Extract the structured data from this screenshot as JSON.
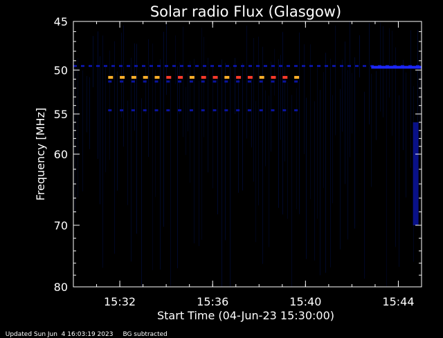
{
  "chart_data": {
    "type": "heatmap",
    "title": "Solar radio Flux (Glasgow)",
    "xlabel": "Start Time (04-Jun-23 15:30:00)",
    "ylabel": "Frequency [MHz]",
    "x_unit": "time (UT)",
    "xlim": [
      "15:30:00",
      "15:45:00"
    ],
    "ylim": [
      45,
      80
    ],
    "y_scale": "log",
    "x_ticks": [
      "15:32",
      "15:36",
      "15:40",
      "15:44"
    ],
    "y_ticks": [
      45,
      50,
      55,
      60,
      70,
      80
    ],
    "grid": false,
    "background_color": "#000000",
    "colors": {
      "faint": "#000a30",
      "weak": "#0a14a0",
      "medium": "#1e28ff",
      "strong": "#ff3a2a",
      "peak": "#ffb02a"
    },
    "features": [
      {
        "kind": "dashed-band",
        "freq_mhz": 50.8,
        "t_start": "15:31:30",
        "t_end": "15:39:45",
        "level": "strong"
      },
      {
        "kind": "dashed-band",
        "freq_mhz": 51.3,
        "t_start": "15:31:30",
        "t_end": "15:39:45",
        "level": "weak"
      },
      {
        "kind": "dashed-band",
        "freq_mhz": 54.6,
        "t_start": "15:31:30",
        "t_end": "15:39:45",
        "level": "weak"
      },
      {
        "kind": "dashed-band",
        "freq_mhz": 49.6,
        "t_start": "15:30:00",
        "t_end": "15:45:00",
        "level": "weak"
      },
      {
        "kind": "solid-band",
        "freq_mhz": 49.7,
        "t_start": "15:42:50",
        "t_end": "15:45:00",
        "level": "medium"
      },
      {
        "kind": "column",
        "time": "15:44:45",
        "f_start": 56,
        "f_end": 70,
        "level": "weak"
      }
    ]
  },
  "footer": {
    "updated": "Updated Sun Jun  4 16:03:19 2023",
    "note": "BG subtracted"
  }
}
